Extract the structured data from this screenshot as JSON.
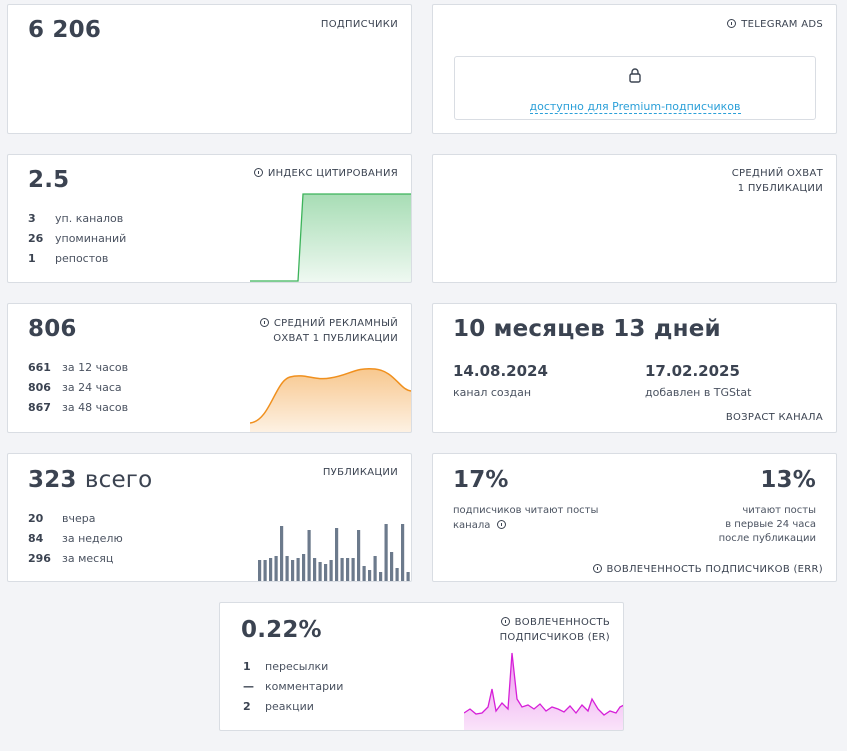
{
  "subscribers": {
    "value": "6 206",
    "label": "ПОДПИСЧИКИ"
  },
  "ads": {
    "label": "TELEGRAM ADS",
    "premium_text": "доступно для Premium-подписчиков"
  },
  "citation": {
    "value": "2.5",
    "label": "ИНДЕКС ЦИТИРОВАНИЯ",
    "rows": [
      {
        "num": "3",
        "text": "уп. каналов"
      },
      {
        "num": "26",
        "text": "упоминаний"
      },
      {
        "num": "1",
        "text": "репостов"
      }
    ],
    "color": "#3cb35a"
  },
  "avg_reach": {
    "label_line1": "СРЕДНИЙ ОХВАТ",
    "label_line2": "1 ПУБЛИКАЦИИ"
  },
  "ad_reach": {
    "value": "806",
    "label_line1": "СРЕДНИЙ РЕКЛАМНЫЙ",
    "label_line2": "ОХВАТ 1 ПУБЛИКАЦИИ",
    "rows": [
      {
        "num": "661",
        "text": "за 12 часов"
      },
      {
        "num": "806",
        "text": "за 24 часа"
      },
      {
        "num": "867",
        "text": "за 48 часов"
      }
    ],
    "color": "#f0901e"
  },
  "age": {
    "value": "10 месяцев 13 дней",
    "created_date": "14.08.2024",
    "created_label": "канал создан",
    "added_date": "17.02.2025",
    "added_label": "добавлен в TGStat",
    "label": "ВОЗРАСТ КАНАЛА"
  },
  "publications": {
    "value": "323",
    "value_suffix": "всего",
    "label": "ПУБЛИКАЦИИ",
    "rows": [
      {
        "num": "20",
        "text": "вчера"
      },
      {
        "num": "84",
        "text": "за неделю"
      },
      {
        "num": "296",
        "text": "за месяц"
      }
    ],
    "color": "#6c7a8c"
  },
  "err": {
    "left_value": "17%",
    "left_text_1": "подписчиков читают посты",
    "left_text_2": "канала",
    "right_value": "13%",
    "right_text_1": "читают посты",
    "right_text_2": "в первые 24 часа",
    "right_text_3": "после публикации",
    "label": "ВОВЛЕЧЕННОСТЬ ПОДПИСЧИКОВ (ERR)"
  },
  "er": {
    "value": "0.22%",
    "label_line1": "ВОВЛЕЧЕННОСТЬ",
    "label_line2": "ПОДПИСЧИКОВ (ER)",
    "rows": [
      {
        "num": "1",
        "text": "пересылки"
      },
      {
        "num": "—",
        "text": "комментарии"
      },
      {
        "num": "2",
        "text": "реакции"
      }
    ],
    "color": "#d61fd8"
  }
}
